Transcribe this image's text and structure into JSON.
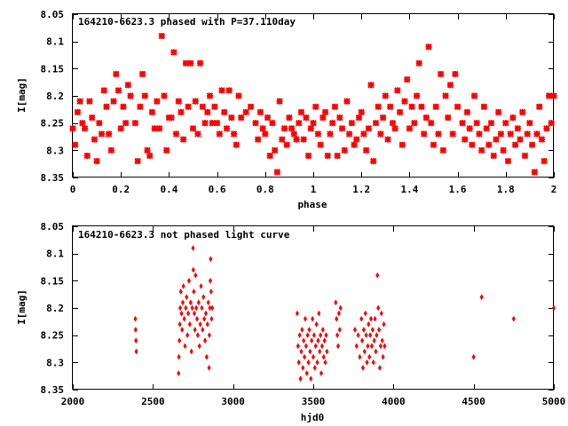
{
  "colors": {
    "points": "#ff0000",
    "axes": "#000000",
    "background": "#ffffff"
  },
  "chart_data": [
    {
      "type": "scatter",
      "marker": "star",
      "title": "164210-6623.3 phased with P=37.110day",
      "xlabel": "phase",
      "ylabel": "I[mag]",
      "xlim": [
        0,
        2
      ],
      "ylim": [
        8.35,
        8.05
      ],
      "x_ticks": [
        "0",
        "0.2",
        "0.4",
        "0.6",
        "0.8",
        "1",
        "1.2",
        "1.4",
        "1.6",
        "1.8",
        "2"
      ],
      "y_ticks": [
        "8.05",
        "8.1",
        "8.15",
        "8.2",
        "8.25",
        "8.3",
        "8.35"
      ],
      "grid": false,
      "points": [
        [
          0.0,
          8.26
        ],
        [
          0.01,
          8.29
        ],
        [
          0.02,
          8.23
        ],
        [
          0.03,
          8.21
        ],
        [
          0.04,
          8.25
        ],
        [
          0.05,
          8.26
        ],
        [
          0.06,
          8.31
        ],
        [
          0.07,
          8.21
        ],
        [
          0.08,
          8.24
        ],
        [
          0.09,
          8.28
        ],
        [
          0.1,
          8.32
        ],
        [
          0.11,
          8.25
        ],
        [
          0.12,
          8.27
        ],
        [
          0.13,
          8.19
        ],
        [
          0.14,
          8.22
        ],
        [
          0.15,
          8.27
        ],
        [
          0.16,
          8.3
        ],
        [
          0.17,
          8.21
        ],
        [
          0.18,
          8.16
        ],
        [
          0.19,
          8.19
        ],
        [
          0.2,
          8.26
        ],
        [
          0.21,
          8.22
        ],
        [
          0.22,
          8.25
        ],
        [
          0.23,
          8.18
        ],
        [
          0.24,
          8.2
        ],
        [
          0.26,
          8.25
        ],
        [
          0.27,
          8.32
        ],
        [
          0.28,
          8.22
        ],
        [
          0.29,
          8.16
        ],
        [
          0.3,
          8.2
        ],
        [
          0.31,
          8.3
        ],
        [
          0.32,
          8.31
        ],
        [
          0.33,
          8.23
        ],
        [
          0.34,
          8.26
        ],
        [
          0.35,
          8.21
        ],
        [
          0.36,
          8.26
        ],
        [
          0.37,
          8.09
        ],
        [
          0.38,
          8.2
        ],
        [
          0.39,
          8.3
        ],
        [
          0.4,
          8.24
        ],
        [
          0.41,
          8.24
        ],
        [
          0.42,
          8.12
        ],
        [
          0.43,
          8.27
        ],
        [
          0.44,
          8.21
        ],
        [
          0.45,
          8.23
        ],
        [
          0.46,
          8.28
        ],
        [
          0.47,
          8.14
        ],
        [
          0.48,
          8.22
        ],
        [
          0.49,
          8.14
        ],
        [
          0.5,
          8.26
        ],
        [
          0.51,
          8.21
        ],
        [
          0.52,
          8.27
        ],
        [
          0.53,
          8.14
        ],
        [
          0.54,
          8.22
        ],
        [
          0.55,
          8.25
        ],
        [
          0.56,
          8.23
        ],
        [
          0.57,
          8.2
        ],
        [
          0.58,
          8.25
        ],
        [
          0.59,
          8.22
        ],
        [
          0.6,
          8.25
        ],
        [
          0.61,
          8.27
        ],
        [
          0.62,
          8.19
        ],
        [
          0.63,
          8.23
        ],
        [
          0.64,
          8.26
        ],
        [
          0.65,
          8.19
        ],
        [
          0.66,
          8.24
        ],
        [
          0.67,
          8.27
        ],
        [
          0.68,
          8.29
        ],
        [
          0.69,
          8.2
        ],
        [
          0.7,
          8.24
        ],
        [
          0.72,
          8.23
        ],
        [
          0.74,
          8.22
        ],
        [
          0.76,
          8.25
        ],
        [
          0.77,
          8.28
        ],
        [
          0.78,
          8.23
        ],
        [
          0.79,
          8.26
        ],
        [
          0.8,
          8.27
        ],
        [
          0.81,
          8.24
        ],
        [
          0.82,
          8.31
        ],
        [
          0.83,
          8.25
        ],
        [
          0.84,
          8.3
        ],
        [
          0.85,
          8.34
        ],
        [
          0.86,
          8.21
        ],
        [
          0.87,
          8.28
        ],
        [
          0.88,
          8.26
        ],
        [
          0.89,
          8.29
        ],
        [
          0.9,
          8.24
        ],
        [
          0.91,
          8.26
        ],
        [
          0.92,
          8.27
        ],
        [
          0.93,
          8.28
        ],
        [
          0.94,
          8.25
        ],
        [
          0.95,
          8.23
        ],
        [
          0.96,
          8.28
        ],
        [
          0.97,
          8.24
        ],
        [
          0.98,
          8.31
        ],
        [
          0.99,
          8.26
        ],
        [
          1.0,
          8.25
        ],
        [
          1.01,
          8.22
        ],
        [
          1.02,
          8.27
        ],
        [
          1.03,
          8.29
        ],
        [
          1.04,
          8.24
        ],
        [
          1.05,
          8.23
        ],
        [
          1.06,
          8.31
        ],
        [
          1.07,
          8.27
        ],
        [
          1.08,
          8.25
        ],
        [
          1.09,
          8.22
        ],
        [
          1.1,
          8.31
        ],
        [
          1.11,
          8.24
        ],
        [
          1.12,
          8.26
        ],
        [
          1.13,
          8.3
        ],
        [
          1.14,
          8.21
        ],
        [
          1.15,
          8.27
        ],
        [
          1.16,
          8.25
        ],
        [
          1.17,
          8.29
        ],
        [
          1.18,
          8.28
        ],
        [
          1.19,
          8.24
        ],
        [
          1.2,
          8.23
        ],
        [
          1.21,
          8.27
        ],
        [
          1.22,
          8.3
        ],
        [
          1.23,
          8.26
        ],
        [
          1.24,
          8.18
        ],
        [
          1.25,
          8.32
        ],
        [
          1.26,
          8.25
        ],
        [
          1.27,
          8.22
        ],
        [
          1.28,
          8.27
        ],
        [
          1.29,
          8.24
        ],
        [
          1.3,
          8.2
        ],
        [
          1.31,
          8.28
        ],
        [
          1.32,
          8.22
        ],
        [
          1.33,
          8.25
        ],
        [
          1.34,
          8.26
        ],
        [
          1.35,
          8.19
        ],
        [
          1.36,
          8.23
        ],
        [
          1.37,
          8.29
        ],
        [
          1.38,
          8.21
        ],
        [
          1.39,
          8.17
        ],
        [
          1.4,
          8.26
        ],
        [
          1.41,
          8.22
        ],
        [
          1.42,
          8.25
        ],
        [
          1.43,
          8.2
        ],
        [
          1.44,
          8.14
        ],
        [
          1.45,
          8.22
        ],
        [
          1.46,
          8.27
        ],
        [
          1.47,
          8.24
        ],
        [
          1.48,
          8.11
        ],
        [
          1.49,
          8.25
        ],
        [
          1.5,
          8.29
        ],
        [
          1.51,
          8.22
        ],
        [
          1.52,
          8.27
        ],
        [
          1.53,
          8.16
        ],
        [
          1.54,
          8.3
        ],
        [
          1.55,
          8.2
        ],
        [
          1.56,
          8.24
        ],
        [
          1.57,
          8.18
        ],
        [
          1.58,
          8.27
        ],
        [
          1.59,
          8.16
        ],
        [
          1.6,
          8.22
        ],
        [
          1.62,
          8.25
        ],
        [
          1.63,
          8.28
        ],
        [
          1.64,
          8.23
        ],
        [
          1.65,
          8.26
        ],
        [
          1.66,
          8.29
        ],
        [
          1.67,
          8.2
        ],
        [
          1.68,
          8.25
        ],
        [
          1.69,
          8.27
        ],
        [
          1.7,
          8.3
        ],
        [
          1.71,
          8.22
        ],
        [
          1.72,
          8.26
        ],
        [
          1.73,
          8.29
        ],
        [
          1.74,
          8.25
        ],
        [
          1.75,
          8.31
        ],
        [
          1.76,
          8.28
        ],
        [
          1.77,
          8.23
        ],
        [
          1.78,
          8.27
        ],
        [
          1.79,
          8.3
        ],
        [
          1.8,
          8.25
        ],
        [
          1.81,
          8.32
        ],
        [
          1.82,
          8.27
        ],
        [
          1.83,
          8.24
        ],
        [
          1.84,
          8.29
        ],
        [
          1.85,
          8.26
        ],
        [
          1.86,
          8.28
        ],
        [
          1.87,
          8.23
        ],
        [
          1.88,
          8.31
        ],
        [
          1.89,
          8.27
        ],
        [
          1.9,
          8.25
        ],
        [
          1.91,
          8.29
        ],
        [
          1.92,
          8.34
        ],
        [
          1.93,
          8.27
        ],
        [
          1.94,
          8.22
        ],
        [
          1.95,
          8.28
        ],
        [
          1.96,
          8.32
        ],
        [
          1.97,
          8.26
        ],
        [
          1.98,
          8.2
        ],
        [
          1.99,
          8.25
        ],
        [
          2.0,
          8.2
        ]
      ]
    },
    {
      "type": "scatter",
      "marker": "diamond",
      "title": "164210-6623.3 not phased light curve",
      "xlabel": "hjd0",
      "ylabel": "I[mag]",
      "xlim": [
        2000,
        5000
      ],
      "ylim": [
        8.35,
        8.05
      ],
      "x_ticks": [
        "2000",
        "2500",
        "3000",
        "3500",
        "4000",
        "4500",
        "5000"
      ],
      "y_ticks": [
        "8.05",
        "8.1",
        "8.15",
        "8.2",
        "8.25",
        "8.3",
        "8.35"
      ],
      "grid": false,
      "points": [
        [
          2390,
          8.22
        ],
        [
          2392,
          8.24
        ],
        [
          2394,
          8.26
        ],
        [
          2396,
          8.28
        ],
        [
          2660,
          8.32
        ],
        [
          2662,
          8.29
        ],
        [
          2665,
          8.26
        ],
        [
          2668,
          8.23
        ],
        [
          2670,
          8.2
        ],
        [
          2674,
          8.17
        ],
        [
          2678,
          8.21
        ],
        [
          2682,
          8.24
        ],
        [
          2686,
          8.19
        ],
        [
          2690,
          8.16
        ],
        [
          2695,
          8.22
        ],
        [
          2700,
          8.27
        ],
        [
          2705,
          8.2
        ],
        [
          2710,
          8.18
        ],
        [
          2715,
          8.25
        ],
        [
          2720,
          8.21
        ],
        [
          2725,
          8.15
        ],
        [
          2730,
          8.23
        ],
        [
          2735,
          8.19
        ],
        [
          2740,
          8.28
        ],
        [
          2745,
          8.2
        ],
        [
          2750,
          8.09
        ],
        [
          2752,
          8.13
        ],
        [
          2755,
          8.17
        ],
        [
          2758,
          8.21
        ],
        [
          2762,
          8.24
        ],
        [
          2766,
          8.14
        ],
        [
          2770,
          8.2
        ],
        [
          2775,
          8.22
        ],
        [
          2780,
          8.25
        ],
        [
          2785,
          8.19
        ],
        [
          2790,
          8.27
        ],
        [
          2795,
          8.23
        ],
        [
          2800,
          8.16
        ],
        [
          2805,
          8.2
        ],
        [
          2810,
          8.24
        ],
        [
          2815,
          8.18
        ],
        [
          2820,
          8.22
        ],
        [
          2825,
          8.26
        ],
        [
          2830,
          8.21
        ],
        [
          2835,
          8.29
        ],
        [
          2840,
          8.23
        ],
        [
          2845,
          8.19
        ],
        [
          2850,
          8.31
        ],
        [
          2852,
          8.25
        ],
        [
          2855,
          8.2
        ],
        [
          2858,
          8.15
        ],
        [
          2860,
          8.11
        ],
        [
          2863,
          8.17
        ],
        [
          2866,
          8.22
        ],
        [
          2870,
          8.2
        ],
        [
          3400,
          8.21
        ],
        [
          3405,
          8.27
        ],
        [
          3410,
          8.3
        ],
        [
          3415,
          8.25
        ],
        [
          3420,
          8.33
        ],
        [
          3425,
          8.28
        ],
        [
          3430,
          8.24
        ],
        [
          3435,
          8.31
        ],
        [
          3440,
          8.26
        ],
        [
          3445,
          8.29
        ],
        [
          3450,
          8.22
        ],
        [
          3455,
          8.27
        ],
        [
          3460,
          8.32
        ],
        [
          3465,
          8.25
        ],
        [
          3470,
          8.3
        ],
        [
          3475,
          8.24
        ],
        [
          3480,
          8.28
        ],
        [
          3485,
          8.33
        ],
        [
          3490,
          8.26
        ],
        [
          3495,
          8.22
        ],
        [
          3500,
          8.29
        ],
        [
          3505,
          8.25
        ],
        [
          3510,
          8.31
        ],
        [
          3515,
          8.27
        ],
        [
          3520,
          8.23
        ],
        [
          3525,
          8.3
        ],
        [
          3530,
          8.26
        ],
        [
          3535,
          8.21
        ],
        [
          3540,
          8.28
        ],
        [
          3545,
          8.25
        ],
        [
          3550,
          8.32
        ],
        [
          3555,
          8.27
        ],
        [
          3560,
          8.24
        ],
        [
          3565,
          8.29
        ],
        [
          3570,
          8.26
        ],
        [
          3575,
          8.3
        ],
        [
          3580,
          8.25
        ],
        [
          3585,
          8.28
        ],
        [
          3640,
          8.19
        ],
        [
          3645,
          8.22
        ],
        [
          3650,
          8.25
        ],
        [
          3655,
          8.27
        ],
        [
          3660,
          8.21
        ],
        [
          3665,
          8.24
        ],
        [
          3670,
          8.2
        ],
        [
          3760,
          8.24
        ],
        [
          3770,
          8.27
        ],
        [
          3780,
          8.25
        ],
        [
          3790,
          8.29
        ],
        [
          3800,
          8.22
        ],
        [
          3805,
          8.26
        ],
        [
          3810,
          8.31
        ],
        [
          3815,
          8.24
        ],
        [
          3820,
          8.28
        ],
        [
          3825,
          8.21
        ],
        [
          3830,
          8.25
        ],
        [
          3835,
          8.3
        ],
        [
          3840,
          8.27
        ],
        [
          3845,
          8.23
        ],
        [
          3850,
          8.29
        ],
        [
          3855,
          8.25
        ],
        [
          3860,
          8.22
        ],
        [
          3865,
          8.27
        ],
        [
          3870,
          8.24
        ],
        [
          3875,
          8.3
        ],
        [
          3880,
          8.26
        ],
        [
          3885,
          8.22
        ],
        [
          3890,
          8.28
        ],
        [
          3895,
          8.25
        ],
        [
          3900,
          8.14
        ],
        [
          3905,
          8.2
        ],
        [
          3910,
          8.24
        ],
        [
          3915,
          8.31
        ],
        [
          3920,
          8.27
        ],
        [
          3925,
          8.21
        ],
        [
          3930,
          8.26
        ],
        [
          3935,
          8.29
        ],
        [
          3940,
          8.23
        ],
        [
          3945,
          8.27
        ],
        [
          4500,
          8.29
        ],
        [
          4550,
          8.18
        ],
        [
          4750,
          8.22
        ],
        [
          5000,
          8.2
        ]
      ]
    }
  ]
}
